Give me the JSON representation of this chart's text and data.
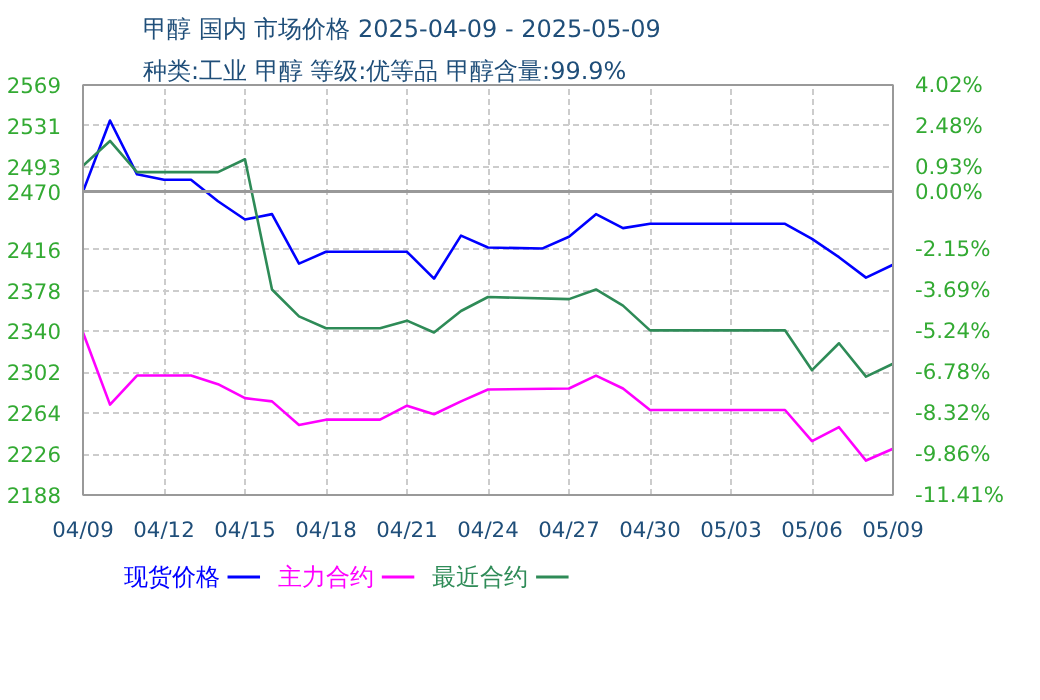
{
  "chart_data": {
    "type": "line",
    "title": "甲醇 国内 市场价格 2025-04-09 - 2025-05-09",
    "subtitle": "种类:工业 甲醇 等级:优等品 甲醇含量:99.9%",
    "xlim": [
      "2025-04-09",
      "2025-05-09"
    ],
    "xticks": [
      {
        "value": "2025-04-09",
        "label": "04/09"
      },
      {
        "value": "2025-04-12",
        "label": "04/12"
      },
      {
        "value": "2025-04-15",
        "label": "04/15"
      },
      {
        "value": "2025-04-18",
        "label": "04/18"
      },
      {
        "value": "2025-04-21",
        "label": "04/21"
      },
      {
        "value": "2025-04-24",
        "label": "04/24"
      },
      {
        "value": "2025-04-27",
        "label": "04/27"
      },
      {
        "value": "2025-04-30",
        "label": "04/30"
      },
      {
        "value": "2025-05-03",
        "label": "05/03"
      },
      {
        "value": "2025-05-06",
        "label": "05/06"
      },
      {
        "value": "2025-05-09",
        "label": "05/09"
      }
    ],
    "ylim": [
      2188,
      2569
    ],
    "yticks": [
      2188,
      2226,
      2264,
      2302,
      2340,
      2378,
      2416,
      2470,
      2493,
      2531,
      2569
    ],
    "y2lim": [
      -11.41,
      4.02
    ],
    "y2ticks": [
      {
        "value": -11.41,
        "label": "-11.41%"
      },
      {
        "value": -9.86,
        "label": "-9.86%"
      },
      {
        "value": -8.32,
        "label": "-8.32%"
      },
      {
        "value": -6.78,
        "label": "-6.78%"
      },
      {
        "value": -5.24,
        "label": "-5.24%"
      },
      {
        "value": -3.69,
        "label": "-3.69%"
      },
      {
        "value": -2.15,
        "label": "-2.15%"
      },
      {
        "value": 0.0,
        "label": "0.00%"
      },
      {
        "value": 0.93,
        "label": "0.93%"
      },
      {
        "value": 2.48,
        "label": "2.48%"
      },
      {
        "value": 4.02,
        "label": "4.02%"
      }
    ],
    "ref_lines": [
      {
        "axis": "y",
        "value": 2470,
        "color": "#999999",
        "line_style": "solid"
      }
    ],
    "grid": true,
    "legend": "bottom",
    "line_style": "solid",
    "series": [
      {
        "name": "现货价格",
        "color": "#0000ff",
        "x": [
          "2025-04-09",
          "2025-04-10",
          "2025-04-11",
          "2025-04-12",
          "2025-04-13",
          "2025-04-14",
          "2025-04-15",
          "2025-04-16",
          "2025-04-17",
          "2025-04-18",
          "2025-04-21",
          "2025-04-22",
          "2025-04-23",
          "2025-04-24",
          "2025-04-26",
          "2025-04-27",
          "2025-04-28",
          "2025-04-29",
          "2025-04-30",
          "2025-05-05",
          "2025-05-06",
          "2025-05-07",
          "2025-05-08",
          "2025-05-09"
        ],
        "values": [
          2470,
          2536,
          2486,
          2481,
          2481,
          2461,
          2444,
          2449,
          2403,
          2414,
          2414,
          2389,
          2429,
          2418,
          2417,
          2428,
          2449,
          2436,
          2440,
          2440,
          2426,
          2409,
          2390,
          2402
        ]
      },
      {
        "name": "主力合约",
        "color": "#ff00ff",
        "x": [
          "2025-04-09",
          "2025-04-10",
          "2025-04-11",
          "2025-04-13",
          "2025-04-14",
          "2025-04-15",
          "2025-04-16",
          "2025-04-17",
          "2025-04-18",
          "2025-04-20",
          "2025-04-21",
          "2025-04-22",
          "2025-04-23",
          "2025-04-24",
          "2025-04-27",
          "2025-04-28",
          "2025-04-29",
          "2025-04-30",
          "2025-05-05",
          "2025-05-06",
          "2025-05-07",
          "2025-05-08",
          "2025-05-09"
        ],
        "values": [
          2339,
          2272,
          2299,
          2299,
          2291,
          2278,
          2275,
          2253,
          2258,
          2258,
          2271,
          2263,
          2275,
          2286,
          2287,
          2299,
          2287,
          2267,
          2267,
          2238,
          2251,
          2220,
          2231
        ]
      },
      {
        "name": "最近合约",
        "color": "#2e8b57",
        "x": [
          "2025-04-09",
          "2025-04-10",
          "2025-04-11",
          "2025-04-14",
          "2025-04-15",
          "2025-04-16",
          "2025-04-17",
          "2025-04-18",
          "2025-04-20",
          "2025-04-21",
          "2025-04-22",
          "2025-04-23",
          "2025-04-24",
          "2025-04-27",
          "2025-04-28",
          "2025-04-29",
          "2025-04-30",
          "2025-05-05",
          "2025-05-06",
          "2025-05-07",
          "2025-05-08",
          "2025-05-09"
        ],
        "values": [
          2494,
          2517,
          2488,
          2488,
          2500,
          2379,
          2354,
          2343,
          2343,
          2350,
          2339,
          2359,
          2372,
          2370,
          2379,
          2364,
          2341,
          2341,
          2304,
          2329,
          2298,
          2310
        ]
      }
    ]
  }
}
